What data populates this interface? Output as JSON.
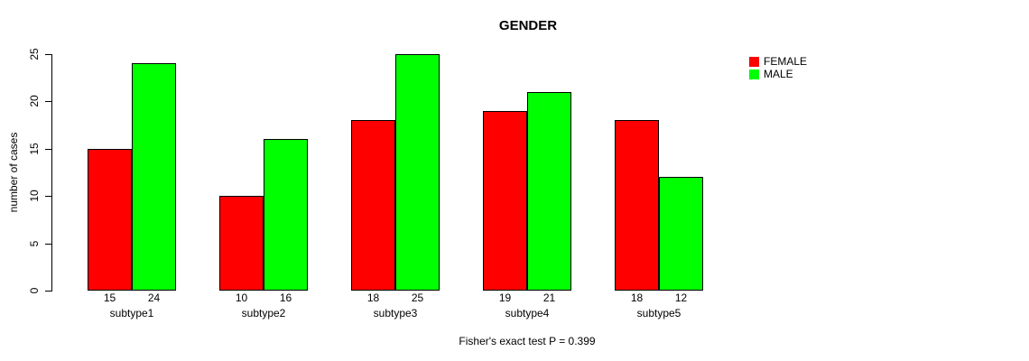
{
  "chart_data": {
    "type": "bar",
    "title": "GENDER",
    "xlabel": "",
    "ylabel": "number of cases",
    "categories": [
      "subtype1",
      "subtype2",
      "subtype3",
      "subtype4",
      "subtype5"
    ],
    "series": [
      {
        "name": "FEMALE",
        "color": "#FF0000",
        "values": [
          15,
          10,
          18,
          19,
          18
        ]
      },
      {
        "name": "MALE",
        "color": "#00FF00",
        "values": [
          24,
          16,
          25,
          21,
          12
        ]
      }
    ],
    "yticks": [
      0,
      5,
      10,
      15,
      20,
      25
    ],
    "ylim": [
      0,
      25
    ],
    "grid": false,
    "legend_position": "top-right",
    "bar_value_labels": true,
    "annotation": "Fisher's exact test P = 0.399"
  }
}
